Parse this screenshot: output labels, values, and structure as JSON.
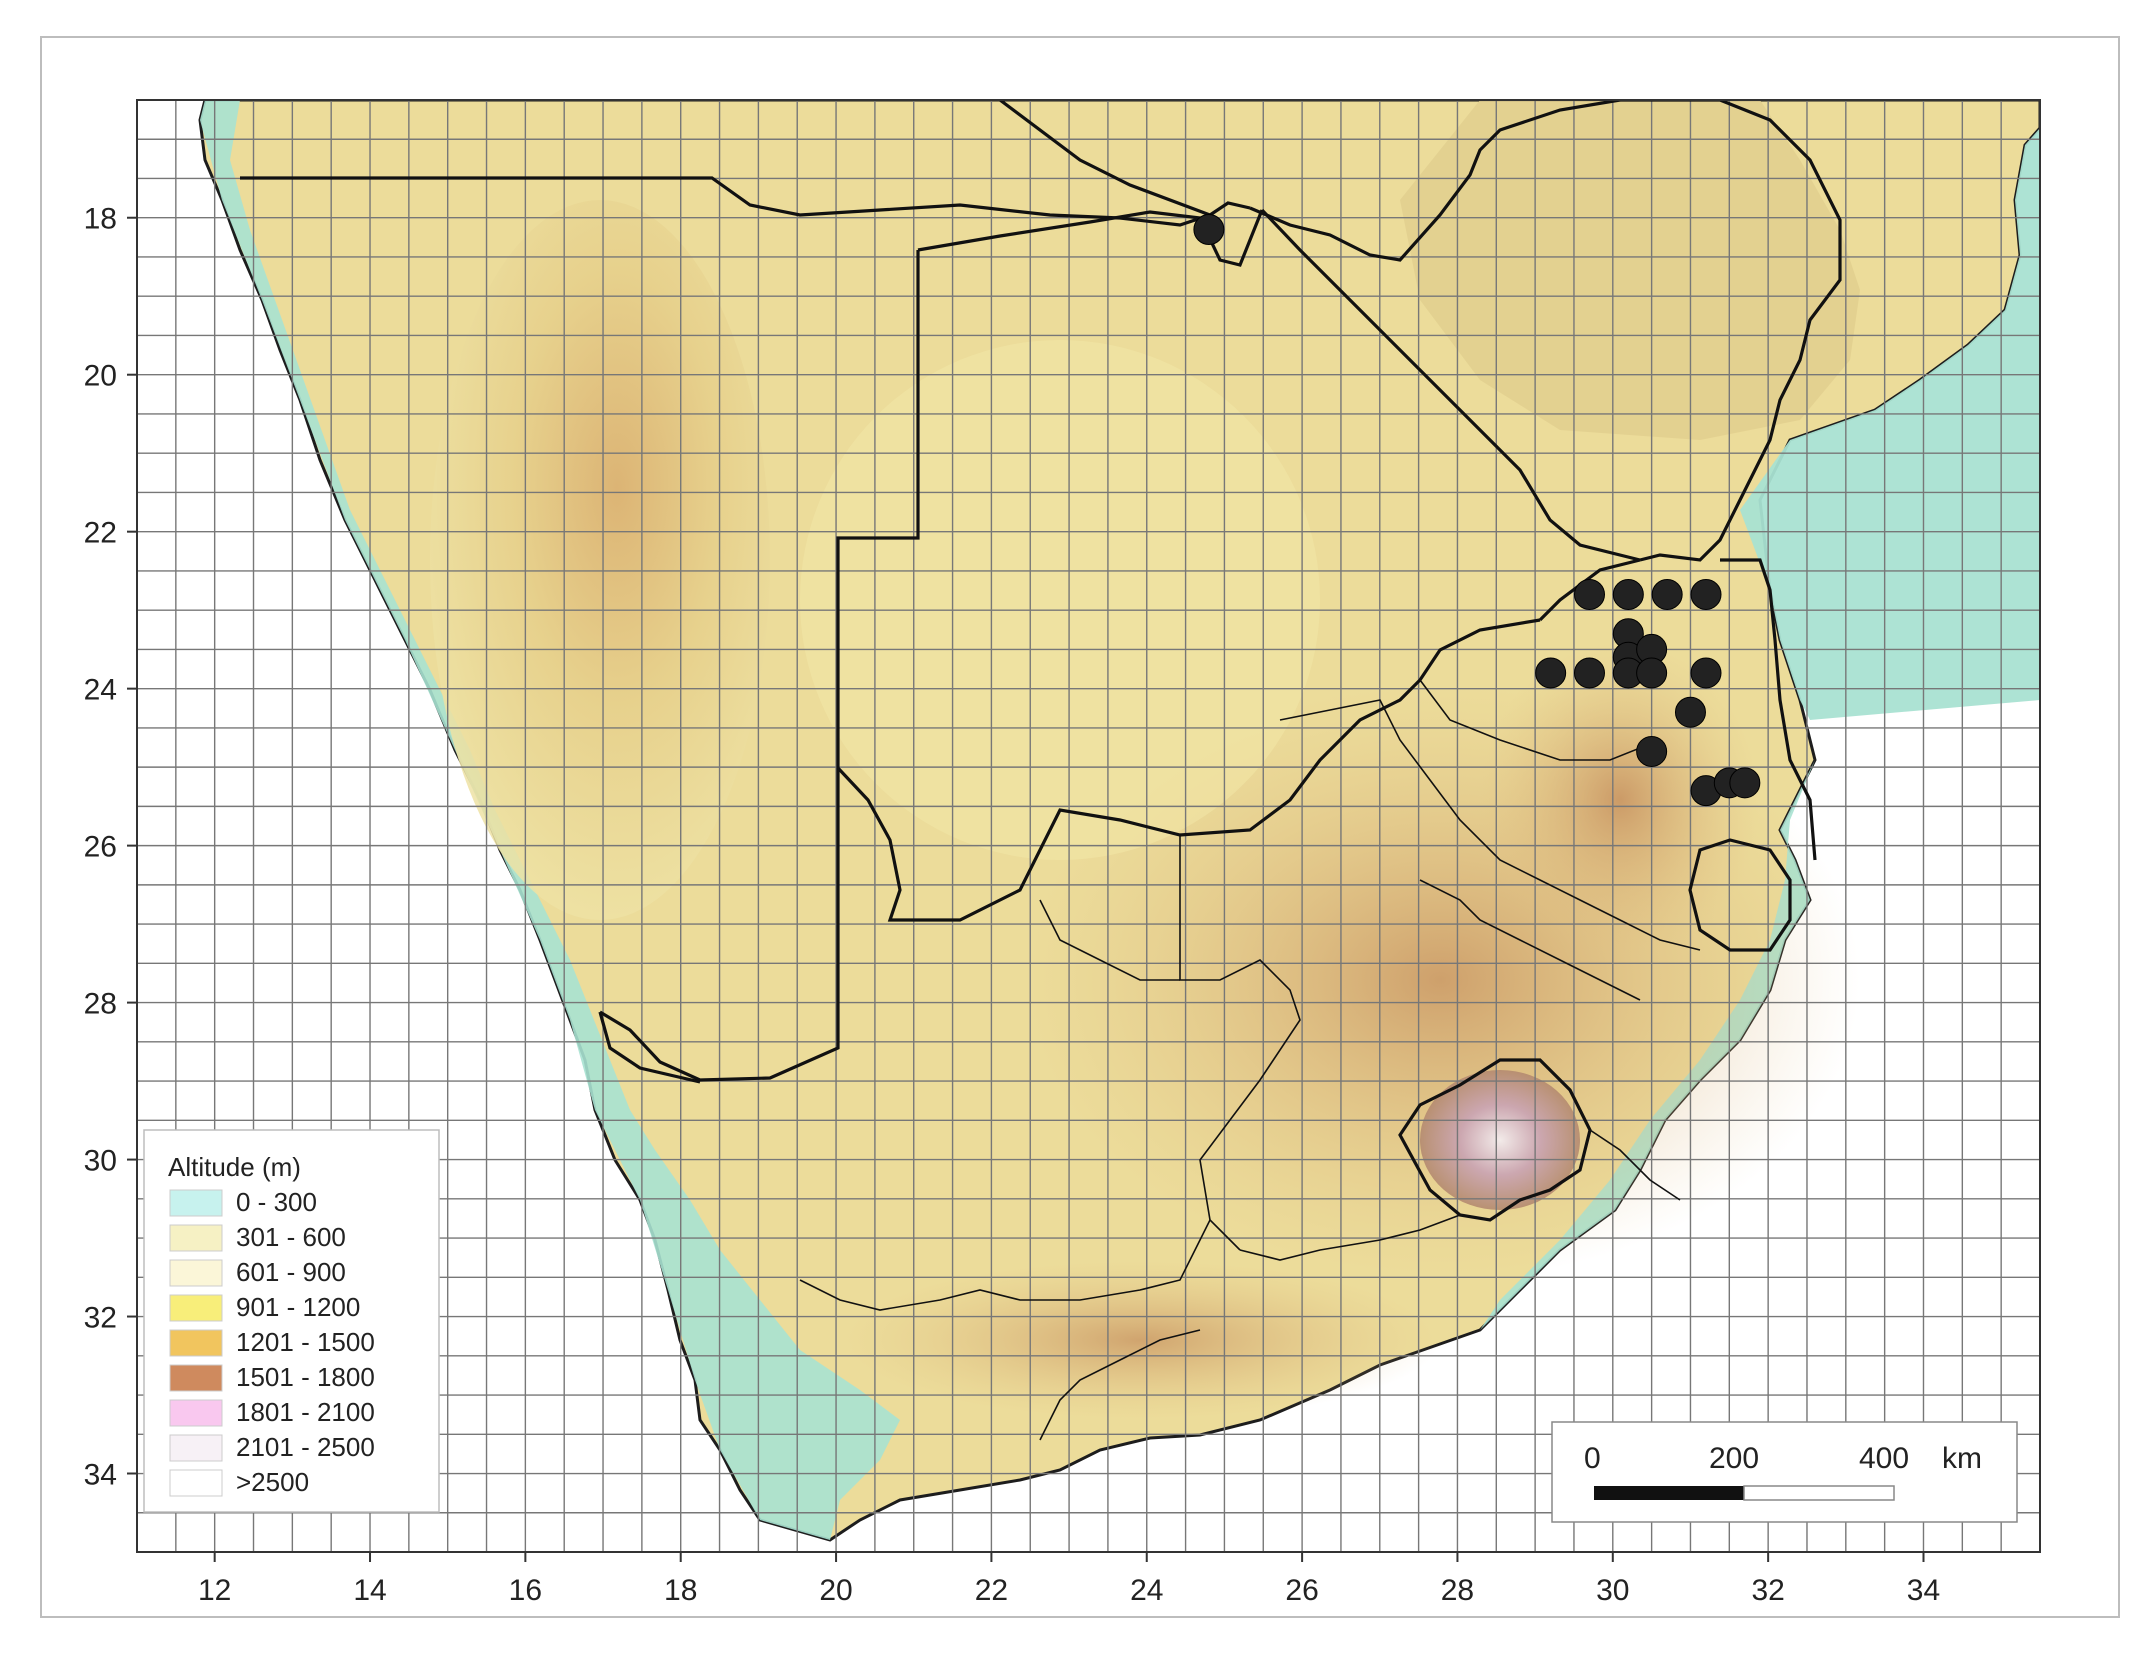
{
  "map": {
    "lon_range": [
      11,
      35.5
    ],
    "lat_range": [
      16.5,
      35
    ],
    "x_ticks": [
      12,
      14,
      16,
      18,
      20,
      22,
      24,
      26,
      28,
      30,
      32,
      34
    ],
    "y_ticks": [
      18,
      20,
      22,
      24,
      26,
      28,
      30,
      32,
      34
    ],
    "grid": "on (0.5 degree)",
    "colors": {
      "ocean": "#ffffff",
      "land_low": "#a9e2d2",
      "land_mid": "#ecdc9a",
      "land_high": "#c9a264",
      "border": "#111111",
      "grid": "#777777",
      "points": "#222222"
    }
  },
  "legend": {
    "title": "Altitude (m)",
    "placement": "bottom-left",
    "items": [
      {
        "label": "0 - 300",
        "color": "#c7f2ee"
      },
      {
        "label": "301 - 600",
        "color": "#f6f1c4"
      },
      {
        "label": "601 - 900",
        "color": "#fbf6d8"
      },
      {
        "label": "901 - 1200",
        "color": "#f8ee7a"
      },
      {
        "label": "1201 - 1500",
        "color": "#f1c55e"
      },
      {
        "label": "1501 - 1800",
        "color": "#cf8a5e"
      },
      {
        "label": "1801 - 2100",
        "color": "#f9c8ef"
      },
      {
        "label": "2101 - 2500",
        "color": "#f7f1f6"
      },
      {
        "label": ">2500",
        "color": "#ffffff"
      }
    ]
  },
  "scale_bar": {
    "labels": [
      "0",
      "200",
      "400",
      "km"
    ],
    "placement": "bottom-right"
  },
  "records": [
    {
      "lon": 24.8,
      "lat": 18.15
    },
    {
      "lon": 29.7,
      "lat": 22.8
    },
    {
      "lon": 30.2,
      "lat": 22.8
    },
    {
      "lon": 30.7,
      "lat": 22.8
    },
    {
      "lon": 31.2,
      "lat": 22.8
    },
    {
      "lon": 30.2,
      "lat": 23.3
    },
    {
      "lon": 30.2,
      "lat": 23.6
    },
    {
      "lon": 30.5,
      "lat": 23.5
    },
    {
      "lon": 29.2,
      "lat": 23.8
    },
    {
      "lon": 29.7,
      "lat": 23.8
    },
    {
      "lon": 30.2,
      "lat": 23.8
    },
    {
      "lon": 30.5,
      "lat": 23.8
    },
    {
      "lon": 31.2,
      "lat": 23.8
    },
    {
      "lon": 31.0,
      "lat": 24.3
    },
    {
      "lon": 30.5,
      "lat": 24.8
    },
    {
      "lon": 31.2,
      "lat": 25.3
    },
    {
      "lon": 31.5,
      "lat": 25.2
    },
    {
      "lon": 31.7,
      "lat": 25.2
    }
  ]
}
